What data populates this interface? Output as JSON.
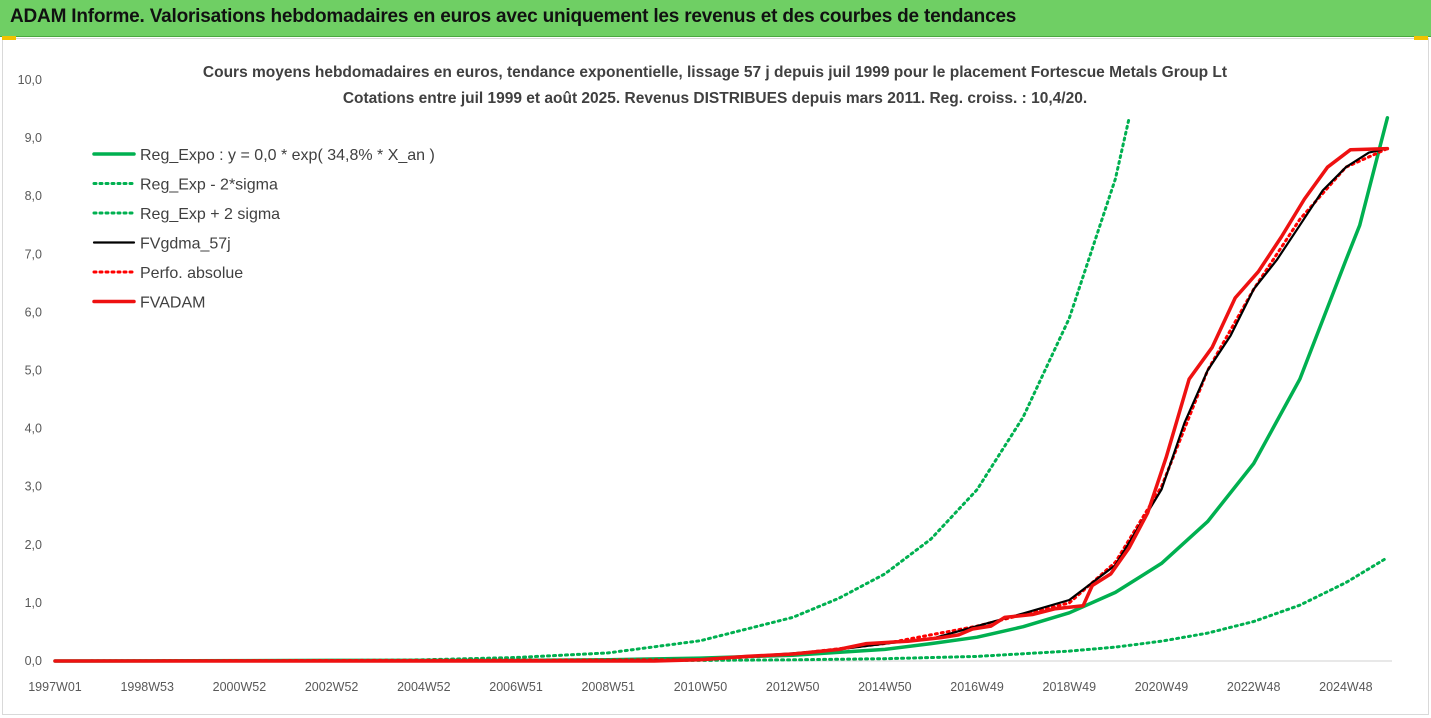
{
  "window": {
    "title": "ADAM Informe. Valorisations hebdomadaires en euros avec uniquement les revenus et des courbes de tendances"
  },
  "colors": {
    "banner": "#6fcf64",
    "trend_green": "#00b050",
    "price_black": "#000000",
    "fvadam_red": "#ee1111",
    "perf_red": "#ff0000"
  },
  "chart_data": {
    "type": "line",
    "title": "Cours moyens hebdomadaires en euros, tendance exponentielle, lissage 57 j depuis juil 1999 pour le placement Fortescue Metals Group Lt",
    "subtitle": "Cotations entre juil 1999 et août 2025. Revenus DISTRIBUES depuis mars 2011. Reg. croiss. : 10,4/20.",
    "xlabel": "",
    "ylabel": "",
    "x_range": [
      1997.0,
      2026.0
    ],
    "ylim": [
      0,
      10
    ],
    "y_ticks": [
      "0,0",
      "1,0",
      "2,0",
      "3,0",
      "4,0",
      "5,0",
      "6,0",
      "7,0",
      "8,0",
      "9,0",
      "10,0"
    ],
    "x_ticks": [
      {
        "label": "1997W01",
        "x": 1997.0
      },
      {
        "label": "1998W53",
        "x": 1999.0
      },
      {
        "label": "2000W52",
        "x": 2001.0
      },
      {
        "label": "2002W52",
        "x": 2003.0
      },
      {
        "label": "2004W52",
        "x": 2005.0
      },
      {
        "label": "2006W51",
        "x": 2007.0
      },
      {
        "label": "2008W51",
        "x": 2009.0
      },
      {
        "label": "2010W50",
        "x": 2011.0
      },
      {
        "label": "2012W50",
        "x": 2013.0
      },
      {
        "label": "2014W50",
        "x": 2015.0
      },
      {
        "label": "2016W49",
        "x": 2017.0
      },
      {
        "label": "2018W49",
        "x": 2019.0
      },
      {
        "label": "2020W49",
        "x": 2021.0
      },
      {
        "label": "2022W48",
        "x": 2023.0
      },
      {
        "label": "2024W48",
        "x": 2025.0
      }
    ],
    "grid": false,
    "legend_position": "top-left",
    "series": [
      {
        "name": "Reg_Expo : y = 0,0 * exp( 34,8% *  X_an )",
        "style": "solid",
        "color": "#00b050",
        "points": [
          [
            1997,
            0
          ],
          [
            2003,
            0.01
          ],
          [
            2005,
            0.01
          ],
          [
            2007,
            0.01
          ],
          [
            2009,
            0.02
          ],
          [
            2011,
            0.05
          ],
          [
            2013,
            0.1
          ],
          [
            2015,
            0.2
          ],
          [
            2016,
            0.3
          ],
          [
            2017,
            0.41
          ],
          [
            2018,
            0.59
          ],
          [
            2019,
            0.83
          ],
          [
            2020,
            1.18
          ],
          [
            2021,
            1.68
          ],
          [
            2022,
            2.4
          ],
          [
            2023,
            3.4
          ],
          [
            2024,
            4.85
          ],
          [
            2025,
            6.9
          ],
          [
            2025.3,
            7.5
          ],
          [
            2025.9,
            9.35
          ]
        ]
      },
      {
        "name": "Reg_Exp - 2*sigma",
        "style": "dotted",
        "color": "#00b050",
        "points": [
          [
            2003,
            0
          ],
          [
            2011,
            0.01
          ],
          [
            2013,
            0.02
          ],
          [
            2015,
            0.04
          ],
          [
            2017,
            0.08
          ],
          [
            2019,
            0.17
          ],
          [
            2020,
            0.24
          ],
          [
            2021,
            0.34
          ],
          [
            2022,
            0.48
          ],
          [
            2023,
            0.68
          ],
          [
            2024,
            0.96
          ],
          [
            2025,
            1.35
          ],
          [
            2025.9,
            1.78
          ]
        ]
      },
      {
        "name": "Reg_Exp + 2 sigma",
        "style": "dotted",
        "color": "#00b050",
        "points": [
          [
            2003,
            0
          ],
          [
            2005,
            0.02
          ],
          [
            2007,
            0.06
          ],
          [
            2009,
            0.14
          ],
          [
            2011,
            0.35
          ],
          [
            2013,
            0.75
          ],
          [
            2014,
            1.08
          ],
          [
            2015,
            1.5
          ],
          [
            2016,
            2.1
          ],
          [
            2017,
            2.95
          ],
          [
            2018,
            4.2
          ],
          [
            2019,
            5.9
          ],
          [
            2020,
            8.3
          ],
          [
            2020.3,
            9.35
          ]
        ]
      },
      {
        "name": "FVgdma_57j",
        "style": "solid",
        "color": "#000000",
        "points": [
          [
            1997,
            0
          ],
          [
            2010,
            0.01
          ],
          [
            2011,
            0.03
          ],
          [
            2012,
            0.08
          ],
          [
            2013,
            0.13
          ],
          [
            2014,
            0.2
          ],
          [
            2015,
            0.3
          ],
          [
            2016,
            0.38
          ],
          [
            2017,
            0.6
          ],
          [
            2018,
            0.82
          ],
          [
            2019,
            1.05
          ],
          [
            2020,
            1.65
          ],
          [
            2020.5,
            2.3
          ],
          [
            2021,
            2.95
          ],
          [
            2021.5,
            4.1
          ],
          [
            2022,
            5.0
          ],
          [
            2022.5,
            5.6
          ],
          [
            2023,
            6.4
          ],
          [
            2023.5,
            6.9
          ],
          [
            2024,
            7.5
          ],
          [
            2024.5,
            8.1
          ],
          [
            2025,
            8.5
          ],
          [
            2025.5,
            8.75
          ],
          [
            2025.9,
            8.82
          ]
        ]
      },
      {
        "name": "Perfo. absolue",
        "style": "dotted",
        "color": "#ff0000",
        "points": [
          [
            1997,
            0
          ],
          [
            2011,
            0.02
          ],
          [
            2013,
            0.12
          ],
          [
            2015,
            0.3
          ],
          [
            2017,
            0.6
          ],
          [
            2019,
            1.0
          ],
          [
            2020,
            1.7
          ],
          [
            2021,
            3.0
          ],
          [
            2022,
            5.0
          ],
          [
            2023,
            6.4
          ],
          [
            2024,
            7.6
          ],
          [
            2025,
            8.5
          ],
          [
            2025.9,
            8.82
          ]
        ]
      },
      {
        "name": "FVADAM",
        "style": "solid",
        "color": "#ee1111",
        "points": [
          [
            1997,
            0
          ],
          [
            2010,
            0
          ],
          [
            2011,
            0.02
          ],
          [
            2012,
            0.08
          ],
          [
            2013,
            0.12
          ],
          [
            2013.4,
            0.15
          ],
          [
            2014,
            0.2
          ],
          [
            2014.6,
            0.3
          ],
          [
            2015.5,
            0.34
          ],
          [
            2016.2,
            0.4
          ],
          [
            2016.6,
            0.45
          ],
          [
            2016.9,
            0.55
          ],
          [
            2017.3,
            0.6
          ],
          [
            2017.6,
            0.75
          ],
          [
            2018.2,
            0.8
          ],
          [
            2018.7,
            0.9
          ],
          [
            2019.3,
            0.95
          ],
          [
            2019.5,
            1.3
          ],
          [
            2019.9,
            1.5
          ],
          [
            2020.3,
            1.95
          ],
          [
            2020.7,
            2.55
          ],
          [
            2021.1,
            3.5
          ],
          [
            2021.6,
            4.85
          ],
          [
            2022.1,
            5.4
          ],
          [
            2022.6,
            6.25
          ],
          [
            2023.1,
            6.7
          ],
          [
            2023.6,
            7.3
          ],
          [
            2024.1,
            7.95
          ],
          [
            2024.6,
            8.5
          ],
          [
            2025.1,
            8.8
          ],
          [
            2025.9,
            8.82
          ]
        ]
      }
    ]
  }
}
